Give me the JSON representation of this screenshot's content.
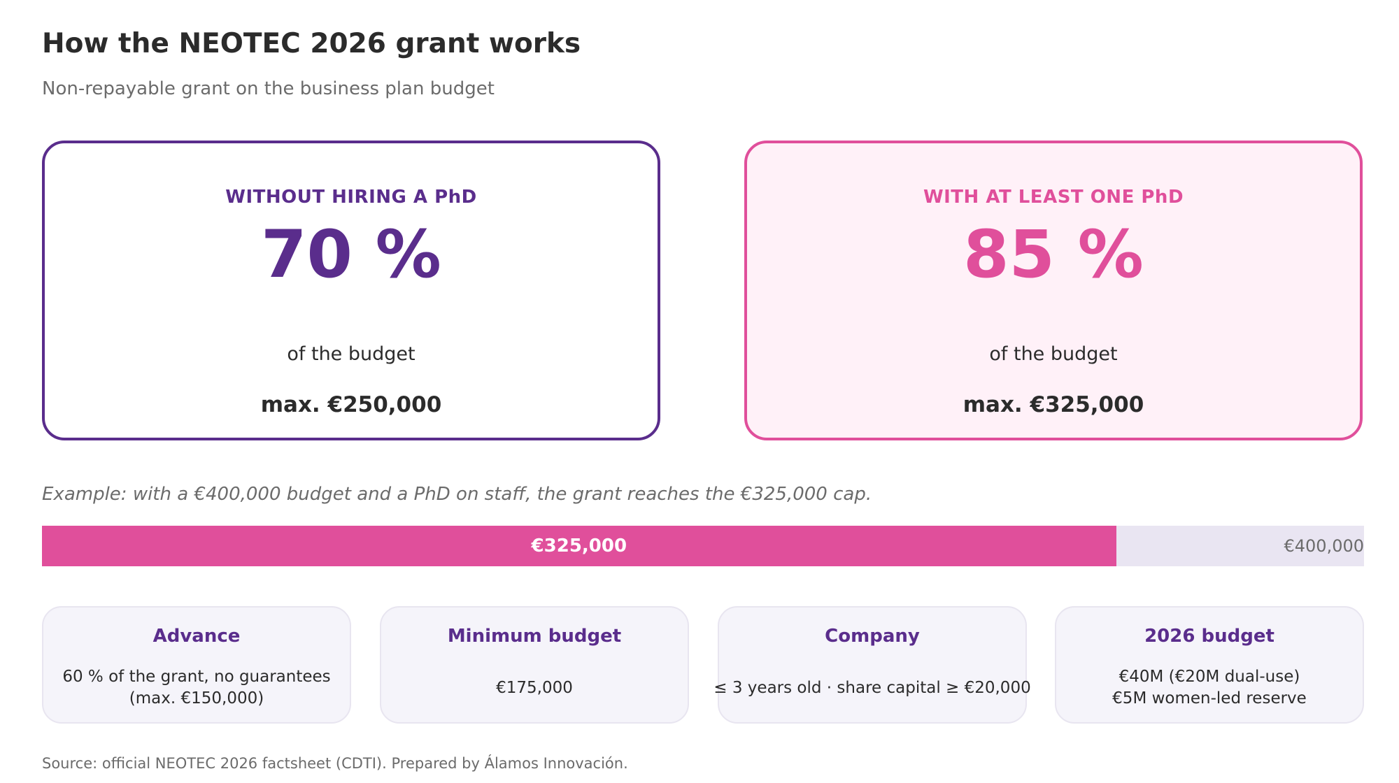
{
  "header": {
    "title": "How the NEOTEC 2026 grant works",
    "subtitle": "Non-repayable grant on the business plan budget"
  },
  "cards": [
    {
      "label": "WITHOUT HIRING A PhD",
      "percent": "70 %",
      "of_text": "of the budget",
      "max_text": "max. €250,000",
      "accent_color": "#5a2d8c"
    },
    {
      "label": "WITH AT LEAST ONE PhD",
      "percent": "85 %",
      "of_text": "of the budget",
      "max_text": "max. €325,000",
      "accent_color": "#e04f9b"
    }
  ],
  "example": {
    "text": "Example: with a €400,000 budget and a PhD on staff, the grant reaches the €325,000 cap.",
    "grant_value": 325000,
    "budget_value": 400000,
    "grant_label": "€325,000",
    "budget_label": "€400,000",
    "fill_color": "#e04f9b",
    "track_color": "#e9e5f2"
  },
  "info_cards": [
    {
      "title": "Advance",
      "text": "60 % of the grant, no guarantees\n(max. €150,000)"
    },
    {
      "title": "Minimum budget",
      "text": "€175,000"
    },
    {
      "title": "Company",
      "text": "≤ 3 years old · share capital ≥ €20,000"
    },
    {
      "title": "2026 budget",
      "text": "€40M (€20M dual-use)\n€5M women-led reserve"
    }
  ],
  "footer": {
    "source": "Source: official NEOTEC 2026 factsheet (CDTI). Prepared by Álamos Innovación."
  }
}
